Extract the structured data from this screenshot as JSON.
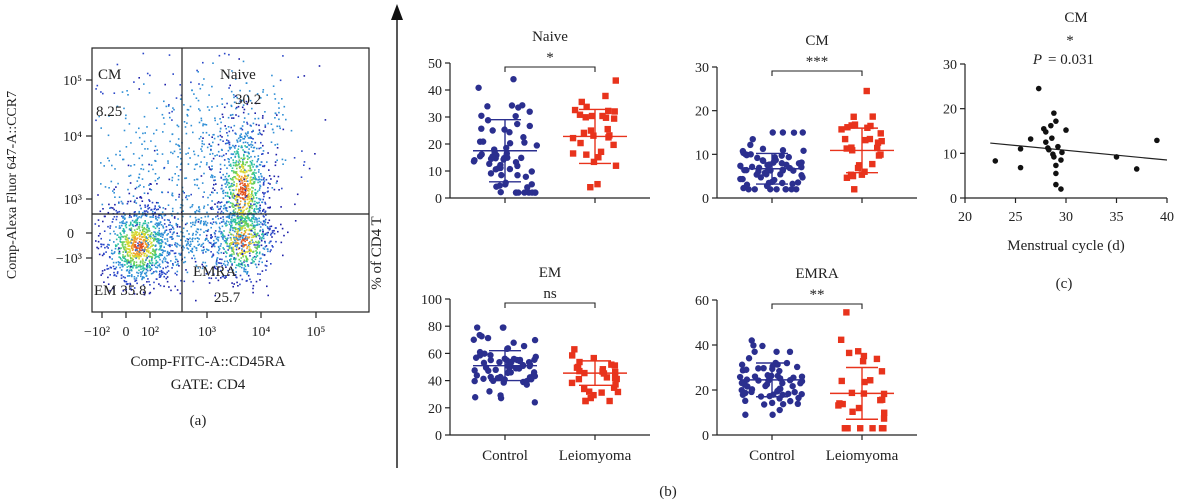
{
  "colors": {
    "control": "#2b2f8f",
    "leiomyoma": "#e8331c",
    "corr": "#111111"
  },
  "flow": {
    "panel_label": "(a)",
    "ylabel": "Comp-Alexa Fluor 647-A::CCR7",
    "xlabel": "Comp-FITC-A::CD45RA",
    "gate": "GATE: CD4",
    "y_ticks": [
      "10⁵",
      "10⁴",
      "10³",
      "0",
      "−10³"
    ],
    "x_ticks": [
      "−10²",
      "0",
      "10²",
      "10³",
      "10⁴",
      "10⁵"
    ],
    "quadrants": {
      "cm_name": "CM",
      "cm_value": "8.25",
      "naive_name": "Naive",
      "naive_value": "30.2",
      "em_text": "EM 35.8",
      "emra_name": "EMRA",
      "emra_value": "25.7"
    }
  },
  "panel_b": {
    "label": "(b)",
    "ylabel": "% of CD4 T"
  },
  "panel_c": {
    "label": "(c)"
  },
  "chart_data": [
    {
      "type": "scatter",
      "panel": "b",
      "title": "Naive",
      "categories": [
        "Control",
        "Leiomyoma"
      ],
      "show_xticks": false,
      "ylim": [
        0,
        50
      ],
      "yticks": [
        0,
        10,
        20,
        30,
        40,
        50
      ],
      "significance": "*",
      "series": [
        {
          "name": "Control",
          "n": 68,
          "mean": 17.5,
          "sd": 11.5,
          "min": 2,
          "max": 44
        },
        {
          "name": "Leiomyoma",
          "n": 30,
          "mean": 22.8,
          "sd": 10,
          "min": 4,
          "max": 43.5
        }
      ]
    },
    {
      "type": "scatter",
      "panel": "b",
      "title": "CM",
      "categories": [
        "Control",
        "Leiomyoma"
      ],
      "show_xticks": false,
      "ylim": [
        0,
        30
      ],
      "yticks": [
        0,
        10,
        20,
        30
      ],
      "significance": "***",
      "series": [
        {
          "name": "Control",
          "n": 68,
          "mean": 6.7,
          "sd": 3.5,
          "min": 2,
          "max": 15
        },
        {
          "name": "Leiomyoma",
          "n": 30,
          "mean": 10.9,
          "sd": 5.1,
          "min": 2,
          "max": 24.5
        }
      ]
    },
    {
      "type": "scatter",
      "panel": "b",
      "title": "EM",
      "categories": [
        "Control",
        "Leiomyoma"
      ],
      "show_xticks": true,
      "ylim": [
        0,
        100
      ],
      "yticks": [
        0,
        20,
        40,
        60,
        80,
        100
      ],
      "significance": "ns",
      "series": [
        {
          "name": "Control",
          "n": 68,
          "mean": 51,
          "sd": 11,
          "min": 24,
          "max": 79
        },
        {
          "name": "Leiomyoma",
          "n": 30,
          "mean": 45.5,
          "sd": 9,
          "min": 25,
          "max": 63
        }
      ]
    },
    {
      "type": "scatter",
      "panel": "b",
      "title": "EMRA",
      "categories": [
        "Control",
        "Leiomyoma"
      ],
      "show_xticks": true,
      "ylim": [
        0,
        60
      ],
      "yticks": [
        0,
        20,
        40,
        60
      ],
      "significance": "**",
      "series": [
        {
          "name": "Control",
          "n": 68,
          "mean": 24.5,
          "sd": 7.5,
          "min": 9,
          "max": 42
        },
        {
          "name": "Leiomyoma",
          "n": 30,
          "mean": 18.5,
          "sd": 11.5,
          "min": 3,
          "max": 54.5
        }
      ]
    },
    {
      "type": "scatter",
      "panel": "c",
      "title": "CM",
      "xlabel": "Menstrual cycle (d)",
      "xlim": [
        20,
        40
      ],
      "xticks": [
        20,
        25,
        30,
        35,
        40
      ],
      "ylim": [
        0,
        30
      ],
      "yticks": [
        0,
        10,
        20,
        30
      ],
      "significance": "*",
      "p_label": "P",
      "p_value": "= 0.031",
      "points": [
        [
          23,
          8.3
        ],
        [
          25.5,
          6.8
        ],
        [
          25.5,
          11
        ],
        [
          26.5,
          13.2
        ],
        [
          27.3,
          24.5
        ],
        [
          27.8,
          15.5
        ],
        [
          28,
          14.8
        ],
        [
          28,
          12.5
        ],
        [
          28.2,
          11.2
        ],
        [
          28.3,
          10.8
        ],
        [
          28.5,
          16.2
        ],
        [
          28.6,
          13.4
        ],
        [
          28.7,
          9.8
        ],
        [
          28.8,
          9.2
        ],
        [
          28.8,
          19
        ],
        [
          29,
          17.2
        ],
        [
          29,
          7.3
        ],
        [
          29,
          5.5
        ],
        [
          29,
          3
        ],
        [
          29.2,
          11.5
        ],
        [
          29.5,
          2
        ],
        [
          29.5,
          8.5
        ],
        [
          29.6,
          10.2
        ],
        [
          30,
          15.2
        ],
        [
          35,
          9.2
        ],
        [
          37,
          6.5
        ],
        [
          39,
          12.9
        ]
      ],
      "regression": {
        "x": [
          22.5,
          40
        ],
        "y": [
          12.3,
          8.5
        ]
      }
    }
  ]
}
